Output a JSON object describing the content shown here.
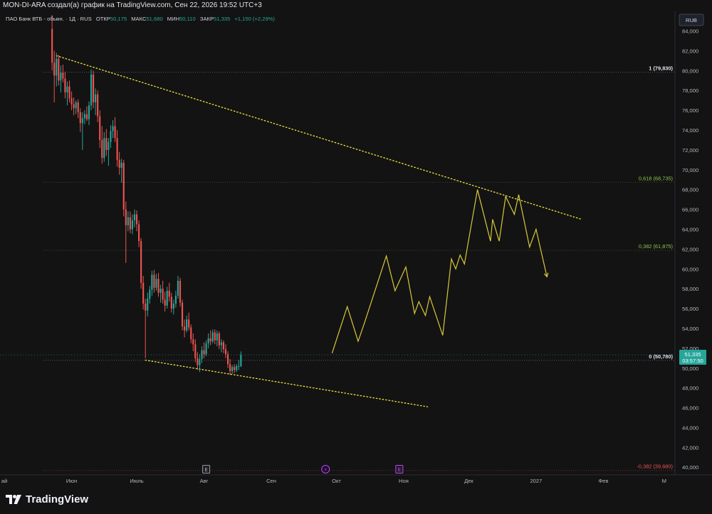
{
  "header": {
    "attribution": "MON-DI-ARA создал(а) график на TradingView.com, Сен 22, 2026 19:52 UTC+3"
  },
  "legend": {
    "symbol": "ПАО Банк ВТБ - обыкн. · 1Д · RUS",
    "open_label": "ОТКР",
    "open": "50,175",
    "high_label": "МАКС",
    "high": "51,680",
    "low_label": "МИН",
    "low": "50,110",
    "close_label": "ЗАКР",
    "close": "51,335",
    "change": "+1,150 (+2,29%)"
  },
  "currency": "RUB",
  "price_tag": {
    "price": "51,335",
    "countdown": "03:57:50"
  },
  "brand": "TradingView",
  "colors": {
    "up": "#26a69a",
    "down": "#ef5350",
    "trend": "#f5e342",
    "projection": "#d8c93a",
    "fib_one": "#e0e3eb",
    "fib_mid": "#8bc34a",
    "fib_neg": "#ef5350",
    "tag": "#26a69a"
  },
  "icons": [
    "tradingview-logo-icon",
    "earnings-e-icon",
    "dividend-lightning-icon"
  ],
  "chart_data": {
    "type": "candlestick",
    "y_axis": {
      "ticks": [
        40,
        42,
        44,
        46,
        48,
        50,
        52,
        54,
        56,
        58,
        60,
        62,
        64,
        66,
        68,
        70,
        72,
        74,
        76,
        78,
        80,
        82,
        84
      ],
      "tick_labels": [
        "40,000",
        "42,000",
        "44,000",
        "46,000",
        "48,000",
        "50,000",
        "52,000",
        "54,000",
        "56,000",
        "58,000",
        "60,000",
        "62,000",
        "64,000",
        "66,000",
        "68,000",
        "70,000",
        "72,000",
        "74,000",
        "76,000",
        "78,000",
        "80,000",
        "82,000",
        "84,000"
      ],
      "ylim": [
        39.3,
        85.9
      ]
    },
    "x_axis": {
      "labels": [
        "ай",
        "Июн",
        "Июль",
        "Авг",
        "Сен",
        "Окт",
        "Ноя",
        "Дек",
        "2027",
        "Фев",
        "М"
      ],
      "positions_day": [
        -8,
        23,
        53,
        84,
        115,
        145,
        176,
        206,
        237,
        268,
        296
      ],
      "xlim_day": [
        -10,
        301
      ]
    },
    "fib_levels": [
      {
        "label": "1 (79,830)",
        "value": 79.83
      },
      {
        "label": "0,618 (68,735)",
        "value": 68.735
      },
      {
        "label": "0,382 (61,875)",
        "value": 61.875
      },
      {
        "label": "0 (50,780)",
        "value": 50.78
      },
      {
        "label": "-0,382 (39,680)",
        "value": 39.68
      }
    ],
    "fib_range_day": [
      10,
      300
    ],
    "trendlines": [
      {
        "name": "upper",
        "points": [
          [
            16,
            81.5
          ],
          [
            258,
            65.0
          ]
        ]
      },
      {
        "name": "lower",
        "points": [
          [
            57,
            50.8
          ],
          [
            187,
            46.1
          ]
        ]
      }
    ],
    "projection": [
      [
        143,
        51.5
      ],
      [
        150,
        56.2
      ],
      [
        155,
        52.7
      ],
      [
        158,
        54.6
      ],
      [
        168,
        61.3
      ],
      [
        172,
        57.8
      ],
      [
        177,
        60.2
      ],
      [
        181,
        55.5
      ],
      [
        183,
        56.7
      ],
      [
        186,
        55.3
      ],
      [
        188,
        57.2
      ],
      [
        194,
        53.3
      ],
      [
        198,
        61.0
      ],
      [
        200,
        60.0
      ],
      [
        202,
        61.4
      ],
      [
        204,
        60.5
      ],
      [
        210,
        68.0
      ],
      [
        216,
        62.8
      ],
      [
        217,
        65.0
      ],
      [
        220,
        62.8
      ],
      [
        223,
        67.3
      ],
      [
        227,
        65.5
      ],
      [
        229,
        67.5
      ],
      [
        234,
        62.2
      ],
      [
        237,
        64.0
      ],
      [
        242,
        59.2
      ]
    ],
    "markers": [
      {
        "type": "earnings",
        "label": "E",
        "day": 85
      },
      {
        "type": "dividend",
        "label": "⚡",
        "day": 140
      },
      {
        "type": "earnings",
        "label": "E",
        "day": 174
      }
    ],
    "candles": [
      [
        14,
        84.2,
        85.6,
        80.0,
        80.8
      ],
      [
        15,
        80.8,
        82.0,
        76.8,
        79.5
      ],
      [
        16,
        79.5,
        81.8,
        78.4,
        81.2
      ],
      [
        17,
        81.2,
        81.6,
        78.5,
        79.0
      ],
      [
        18,
        79.0,
        80.5,
        77.8,
        79.8
      ],
      [
        19,
        79.8,
        80.6,
        78.8,
        79.2
      ],
      [
        20,
        79.2,
        79.9,
        77.2,
        77.8
      ],
      [
        21,
        77.8,
        78.9,
        76.5,
        78.4
      ],
      [
        22,
        78.4,
        79.0,
        76.8,
        77.2
      ],
      [
        23,
        77.2,
        77.9,
        76.0,
        76.6
      ],
      [
        24,
        76.6,
        77.3,
        75.5,
        76.2
      ],
      [
        25,
        76.2,
        77.0,
        75.6,
        76.8
      ],
      [
        26,
        76.8,
        77.1,
        75.2,
        75.8
      ],
      [
        27,
        75.8,
        76.2,
        73.8,
        74.7
      ],
      [
        28,
        74.7,
        75.8,
        72.0,
        75.2
      ],
      [
        29,
        75.2,
        76.0,
        74.6,
        75.6
      ],
      [
        30,
        75.6,
        76.4,
        74.9,
        75.1
      ],
      [
        31,
        75.1,
        76.9,
        74.5,
        76.5
      ],
      [
        32,
        76.5,
        80.1,
        76.0,
        79.6
      ],
      [
        33,
        79.6,
        80.0,
        76.2,
        76.8
      ],
      [
        34,
        76.8,
        78.2,
        75.5,
        77.6
      ],
      [
        35,
        77.6,
        78.0,
        74.8,
        75.4
      ],
      [
        36,
        75.4,
        76.0,
        72.2,
        73.0
      ],
      [
        37,
        73.0,
        74.4,
        70.6,
        71.2
      ],
      [
        38,
        71.2,
        73.8,
        70.8,
        73.2
      ],
      [
        39,
        73.2,
        74.1,
        71.4,
        72.0
      ],
      [
        40,
        72.0,
        73.2,
        70.4,
        72.8
      ],
      [
        41,
        72.8,
        74.5,
        72.2,
        73.9
      ],
      [
        42,
        73.9,
        75.0,
        73.2,
        74.4
      ],
      [
        43,
        74.4,
        75.3,
        72.8,
        73.2
      ],
      [
        44,
        73.2,
        74.0,
        70.3,
        71.0
      ],
      [
        45,
        71.0,
        71.8,
        69.5,
        70.2
      ],
      [
        46,
        70.2,
        71.1,
        68.7,
        70.7
      ],
      [
        47,
        70.7,
        71.0,
        65.3,
        66.0
      ],
      [
        48,
        66.0,
        66.8,
        60.6,
        64.4
      ],
      [
        49,
        64.4,
        65.8,
        63.8,
        65.2
      ],
      [
        50,
        65.2,
        65.8,
        63.6,
        64.0
      ],
      [
        51,
        64.0,
        65.5,
        63.5,
        64.9
      ],
      [
        52,
        64.9,
        66.0,
        64.2,
        65.5
      ],
      [
        53,
        65.5,
        65.9,
        63.8,
        64.5
      ],
      [
        54,
        64.5,
        64.9,
        62.2,
        62.8
      ],
      [
        55,
        62.8,
        63.1,
        58.0,
        58.6
      ],
      [
        56,
        58.6,
        59.3,
        55.9,
        56.5
      ],
      [
        57,
        56.5,
        57.0,
        51.0,
        55.8
      ],
      [
        58,
        55.8,
        57.6,
        55.2,
        57.0
      ],
      [
        59,
        57.0,
        58.3,
        56.5,
        57.9
      ],
      [
        60,
        57.9,
        59.8,
        57.3,
        59.4
      ],
      [
        61,
        59.4,
        59.9,
        57.6,
        58.1
      ],
      [
        62,
        58.1,
        59.5,
        57.8,
        59.0
      ],
      [
        63,
        59.0,
        59.6,
        57.2,
        57.6
      ],
      [
        64,
        57.6,
        58.4,
        56.6,
        58.0
      ],
      [
        65,
        58.0,
        58.8,
        56.5,
        56.9
      ],
      [
        66,
        56.9,
        57.7,
        55.7,
        56.3
      ],
      [
        67,
        56.3,
        58.2,
        56.0,
        57.8
      ],
      [
        68,
        57.8,
        58.6,
        56.7,
        57.2
      ],
      [
        69,
        57.2,
        57.6,
        55.6,
        56.0
      ],
      [
        70,
        56.0,
        56.9,
        55.4,
        56.5
      ],
      [
        71,
        56.5,
        57.8,
        56.1,
        57.3
      ],
      [
        72,
        57.3,
        59.3,
        57.0,
        58.8
      ],
      [
        73,
        58.8,
        59.1,
        56.2,
        56.6
      ],
      [
        74,
        56.6,
        56.9,
        53.8,
        54.2
      ],
      [
        75,
        54.2,
        54.9,
        53.1,
        53.8
      ],
      [
        76,
        53.8,
        55.3,
        53.6,
        54.9
      ],
      [
        77,
        54.9,
        55.6,
        53.8,
        54.1
      ],
      [
        78,
        54.1,
        54.4,
        52.5,
        52.9
      ],
      [
        79,
        52.9,
        53.5,
        51.7,
        52.4
      ],
      [
        80,
        52.4,
        52.9,
        50.6,
        51.0
      ],
      [
        81,
        51.0,
        51.6,
        49.8,
        50.3
      ],
      [
        82,
        50.3,
        51.4,
        49.6,
        50.9
      ],
      [
        83,
        50.9,
        52.2,
        50.5,
        51.8
      ],
      [
        84,
        51.8,
        52.6,
        51.0,
        51.4
      ],
      [
        85,
        51.4,
        52.8,
        51.2,
        52.5
      ],
      [
        86,
        52.5,
        53.5,
        52.0,
        53.0
      ],
      [
        87,
        53.0,
        53.8,
        52.3,
        52.7
      ],
      [
        88,
        52.7,
        53.9,
        52.5,
        53.6
      ],
      [
        89,
        53.6,
        53.9,
        52.4,
        52.8
      ],
      [
        90,
        52.8,
        53.8,
        52.2,
        53.5
      ],
      [
        91,
        53.5,
        53.7,
        51.9,
        52.3
      ],
      [
        92,
        52.3,
        52.9,
        51.6,
        52.6
      ],
      [
        93,
        52.6,
        52.8,
        51.5,
        51.9
      ],
      [
        94,
        51.9,
        52.4,
        51.0,
        51.4
      ],
      [
        95,
        51.4,
        51.7,
        50.0,
        50.4
      ],
      [
        96,
        50.4,
        50.9,
        49.3,
        49.7
      ],
      [
        97,
        49.7,
        50.3,
        49.4,
        50.1
      ],
      [
        98,
        50.1,
        50.4,
        49.5,
        49.8
      ],
      [
        99,
        49.8,
        50.4,
        49.6,
        50.2
      ],
      [
        100,
        50.2,
        50.8,
        49.8,
        50.2
      ],
      [
        101,
        50.175,
        51.68,
        50.11,
        51.335
      ]
    ]
  }
}
